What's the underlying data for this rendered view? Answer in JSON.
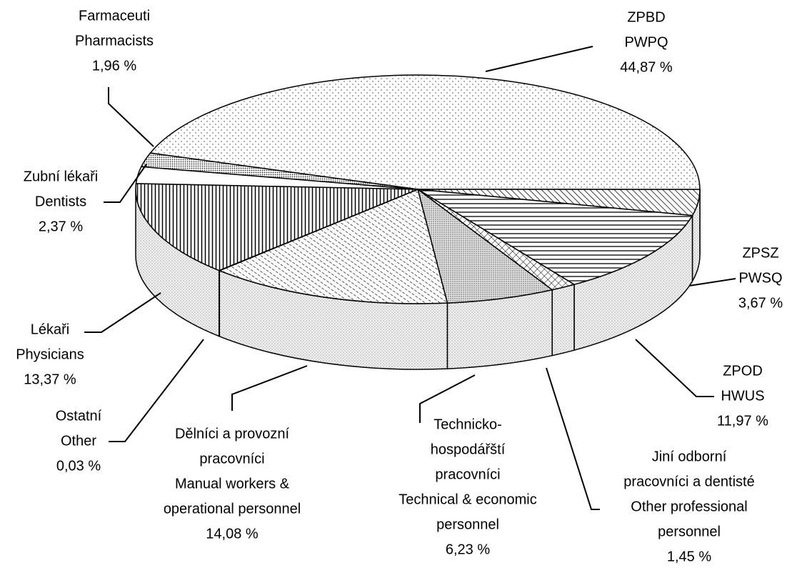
{
  "chart_data": {
    "type": "pie3d",
    "categories": [
      [
        "ZPBD",
        "PWPQ"
      ],
      [
        "ZPSZ",
        "PWSQ"
      ],
      [
        "ZPOD",
        "HWUS"
      ],
      [
        "Jiní odborní",
        "pracovníci a dentisté",
        "Other professional",
        "personnel"
      ],
      [
        "Technicko-",
        "hospodářští",
        "pracovníci",
        "Technical & economic",
        "personnel"
      ],
      [
        "Dělníci a provozní",
        "pracovníci",
        "Manual workers &",
        "operational personnel"
      ],
      [
        "Ostatní",
        "Other"
      ],
      [
        "Lékaři",
        "Physicians"
      ],
      [
        "Zubní lékaři",
        "Dentists"
      ],
      [
        "Farmaceuti",
        "Pharmacists"
      ]
    ],
    "values": [
      44.87,
      3.67,
      11.97,
      1.45,
      6.23,
      14.08,
      0.03,
      13.37,
      2.37,
      1.96
    ],
    "value_labels": [
      "44,87 %",
      "3,67 %",
      "11,97 %",
      "1,45 %",
      "6,23 %",
      "14,08 %",
      "0,03 %",
      "13,37 %",
      "2,37 %",
      "1,96 %"
    ]
  }
}
